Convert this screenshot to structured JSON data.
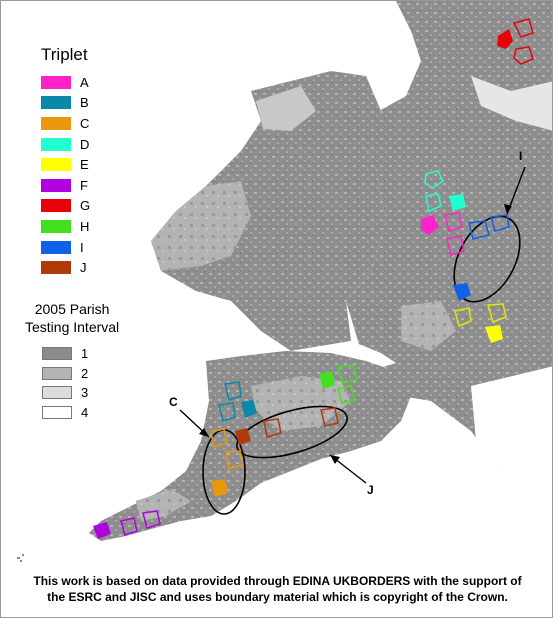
{
  "legend": {
    "title": "Triplet",
    "items": [
      {
        "label": "A",
        "color": "#ff22c8"
      },
      {
        "label": "B",
        "color": "#0a88a8"
      },
      {
        "label": "C",
        "color": "#e8980a"
      },
      {
        "label": "D",
        "color": "#22ffd0"
      },
      {
        "label": "E",
        "color": "#ffff00"
      },
      {
        "label": "F",
        "color": "#b000e0"
      },
      {
        "label": "G",
        "color": "#e8000a"
      },
      {
        "label": "H",
        "color": "#44e020"
      },
      {
        "label": "I",
        "color": "#1060e8"
      },
      {
        "label": "J",
        "color": "#b03a08"
      }
    ]
  },
  "interval_legend": {
    "title_line1": "2005 Parish",
    "title_line2": "Testing Interval",
    "items": [
      {
        "label": "1",
        "color": "#8c8c8c"
      },
      {
        "label": "2",
        "color": "#b4b4b4"
      },
      {
        "label": "3",
        "color": "#dcdcdc"
      },
      {
        "label": "4",
        "color": "#ffffff"
      }
    ]
  },
  "annotations": {
    "i_label": "I",
    "c_label": "C",
    "j_label": "J"
  },
  "credit": {
    "line1": "This work is based on data provided through EDINA UKBORDERS with the support of",
    "line2": "the ESRC and JISC and uses boundary material which is copyright of the Crown."
  }
}
